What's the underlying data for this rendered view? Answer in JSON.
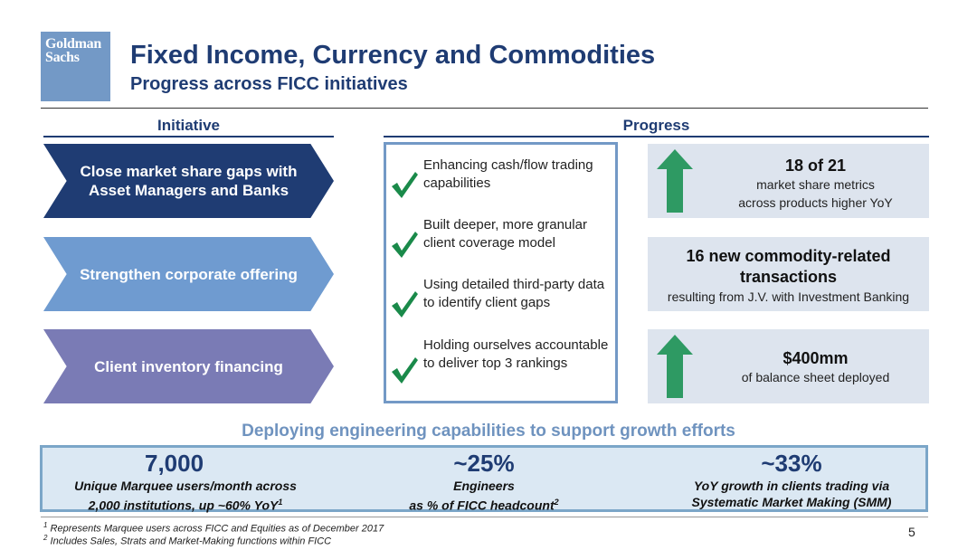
{
  "logo": {
    "line1": "Goldman",
    "line2": "Sachs",
    "color": "#7399c6"
  },
  "header": {
    "title": "Fixed Income, Currency and Commodities",
    "subtitle": "Progress across FICC initiatives"
  },
  "columns": {
    "initiative": "Initiative",
    "progress": "Progress"
  },
  "initiatives": [
    {
      "label": "Close market share gaps with Asset Managers and Banks",
      "color": "#1f3c73"
    },
    {
      "label": "Strengthen corporate offering",
      "color": "#6f9bd0"
    },
    {
      "label": "Client inventory financing",
      "color": "#7a7bb5"
    }
  ],
  "progress_items": [
    {
      "text": "Enhancing cash/flow trading capabilities",
      "icon": "check-icon"
    },
    {
      "text": "Built deeper, more granular client coverage model",
      "icon": "check-icon"
    },
    {
      "text": "Using detailed third-party data to identify client gaps",
      "icon": "check-icon"
    },
    {
      "text": "Holding ourselves accountable to deliver top 3 rankings",
      "icon": "check-icon"
    }
  ],
  "metrics": [
    {
      "headline": "18 of 21",
      "detail_1": "market share metrics",
      "detail_2": "across products higher YoY",
      "icon": "up-arrow-icon"
    },
    {
      "headline_1": "16 new commodity-related",
      "headline_2": "transactions",
      "detail": "resulting from J.V. with Investment Banking"
    },
    {
      "headline": "$400mm",
      "detail": "of balance sheet deployed",
      "icon": "up-arrow-icon"
    }
  ],
  "deploy": {
    "heading": "Deploying engineering capabilities to support growth efforts",
    "stats": [
      {
        "value": "7,000",
        "line1": "Unique Marquee users/month across",
        "line2": "2,000 institutions, up ~60% YoY",
        "note": "1"
      },
      {
        "value": "~25%",
        "line1": "Engineers",
        "line2": "as % of FICC headcount",
        "note": "2"
      },
      {
        "value": "~33%",
        "line1": "YoY growth in clients trading via",
        "line2": "Systematic Market Making (SMM)",
        "note": ""
      }
    ]
  },
  "footnotes": [
    {
      "mark": "1",
      "text": "Represents Marquee users across FICC and Equities as of December 2017"
    },
    {
      "mark": "2",
      "text": "Includes Sales, Strats and Market-Making functions within FICC"
    }
  ],
  "page_number": "5",
  "colors": {
    "navy": "#1f3c73",
    "check_green": "#1a8a4a",
    "arrow_green": "#2e9a63",
    "panel_bg": "#dde4ee"
  }
}
